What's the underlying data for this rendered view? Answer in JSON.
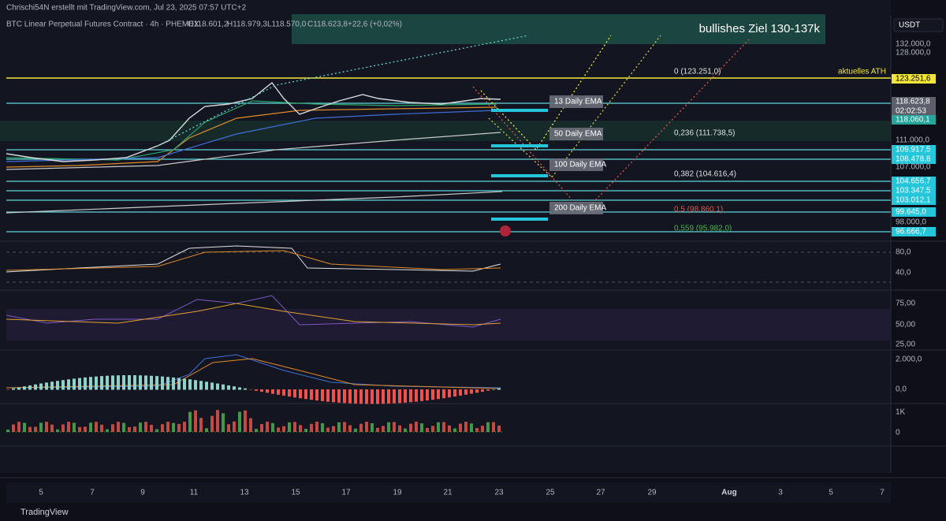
{
  "header": {
    "author_line": "Chrischi54N erstellt mit TradingView.com, Jul 23, 2025 07:57 UTC+2",
    "symbol": "BTC Linear Perpetual Futures Contract · 4h · PHEMEX",
    "open": "O118.601,2",
    "high": "H118.979,3",
    "low": "L118.570,0",
    "close": "C118.623,8",
    "change": "+22,6 (+0,02%)",
    "currency": "USDT"
  },
  "annotations": {
    "target": "bullishes Ziel 130-137k",
    "ath": "aktuelles ATH"
  },
  "fib_labels": [
    "0 (123.251,0)",
    "0,236 (111.738,5)",
    "0,382 (104.616,4)",
    "0,5 (98.860,1)",
    "0,559 (95.982,0)"
  ],
  "ema_labels": [
    "13 Daily EMA",
    "50 Daily EMA",
    "100 Daily EMA",
    "200 Daily EMA"
  ],
  "price_axis": [
    "132.000,0",
    "128.000,0",
    "123.251,6",
    "118.623,8",
    "02:02:53",
    "118.060,1",
    "111.000,0",
    "109.917,5",
    "108.478,8",
    "107.000,0",
    "104.656,7",
    "103.347,5",
    "103.012,1",
    "99.645,0",
    "98.000,0",
    "96.666,7"
  ],
  "indicator_axes": [
    "80,0",
    "40,0",
    "75,00",
    "50,00",
    "25,00",
    "2.000,0",
    "0,0",
    "1K",
    "0"
  ],
  "time_axis": [
    "5",
    "7",
    "9",
    "11",
    "13",
    "15",
    "17",
    "19",
    "21",
    "23",
    "25",
    "27",
    "29",
    "Aug",
    "3",
    "5",
    "7"
  ],
  "footer": {
    "brand": "TradingView"
  }
}
